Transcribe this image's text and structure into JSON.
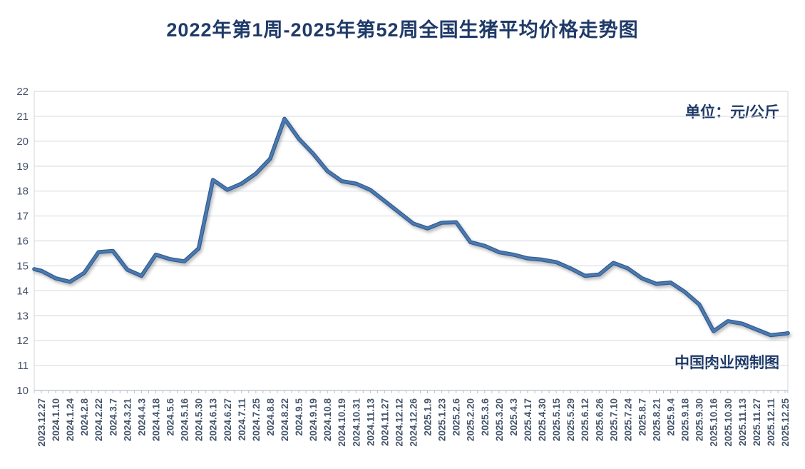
{
  "chart_data": {
    "type": "line",
    "title": "2022年第1周-2025年第52周全国生猪平均价格走势图",
    "unit_label": "单位：元/公斤",
    "credit": "中国肉业网制图",
    "ylim": [
      10,
      22
    ],
    "yticks": [
      10,
      11,
      12,
      13,
      14,
      15,
      16,
      17,
      18,
      19,
      20,
      21,
      22
    ],
    "grid": true,
    "legend": "none",
    "categories": [
      "2023.12.27",
      "2024.1.10",
      "2024.1.24",
      "2024.2.8",
      "2024.2.22",
      "2024.3.7",
      "2024.3.21",
      "2024.4.3",
      "2024.4.18",
      "2024.5.6",
      "2024.5.16",
      "2024.5.30",
      "2024.6.13",
      "2024.6.27",
      "2024.7.11",
      "2024.7.25",
      "2024.8.8",
      "2024.8.22",
      "2024.9.5",
      "2024.9.19",
      "2024.10.8",
      "2024.10.19",
      "2024.10.31",
      "2024.11.13",
      "2024.11.27",
      "2024.12.12",
      "2024.12.26",
      "2025.1.9",
      "2025.1.23",
      "2025.2.6",
      "2025.2.20",
      "2025.3.6",
      "2025.3.20",
      "2025.4.3",
      "2025.4.17",
      "2025.4.30",
      "2025.5.15",
      "2025.5.29",
      "2025.6.12",
      "2025.6.26",
      "2025.7.10",
      "2025.7.24",
      "2025.8.7",
      "2025.8.21",
      "2025.9.4",
      "2025.9.18",
      "2025.9.30",
      "2025.10.16",
      "2025.10.30",
      "2025.11.13",
      "2025.11.27",
      "2025.12.11",
      "2025.12.25"
    ],
    "values": [
      14.8,
      14.5,
      14.36,
      14.72,
      15.55,
      15.6,
      14.85,
      14.6,
      15.45,
      15.27,
      15.18,
      15.7,
      18.45,
      18.05,
      18.3,
      18.7,
      19.3,
      20.9,
      20.1,
      19.5,
      18.8,
      18.4,
      18.3,
      18.05,
      17.6,
      17.15,
      16.7,
      16.5,
      16.73,
      16.75,
      15.95,
      15.8,
      15.55,
      15.45,
      15.3,
      15.25,
      15.15,
      14.9,
      14.6,
      14.65,
      15.12,
      14.9,
      14.5,
      14.28,
      14.33,
      13.95,
      13.45,
      12.38,
      12.78,
      12.68,
      12.45,
      12.22,
      12.28
    ],
    "lead_in_value": 14.87,
    "lead_out_value": 12.3,
    "colors": {
      "line": "#4c7ab0",
      "line_edge": "#305a8e",
      "grid": "#d8dde3",
      "axis": "#b9bfc9",
      "tick_text": "#44546a",
      "title_text": "#1f3a68"
    }
  }
}
